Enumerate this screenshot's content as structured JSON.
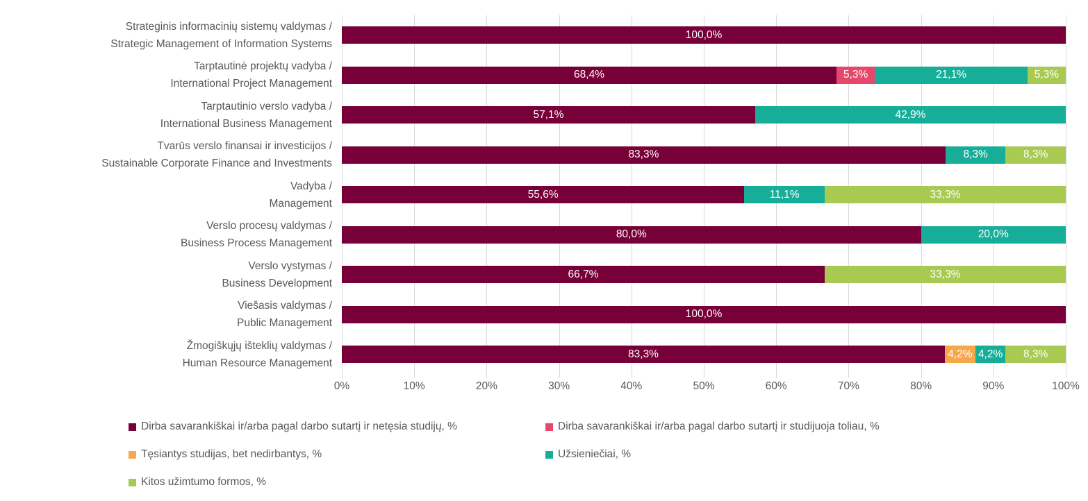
{
  "chart_data": {
    "type": "bar",
    "variant": "horizontal-stacked",
    "title": "",
    "xlabel": "",
    "ylabel": "",
    "xlim": [
      0,
      100
    ],
    "grid": "vertical",
    "legend_position": "bottom",
    "x_ticks": [
      "0%",
      "10%",
      "20%",
      "30%",
      "40%",
      "50%",
      "60%",
      "70%",
      "80%",
      "90%",
      "100%"
    ],
    "series": [
      {
        "name": "Dirba savarankiškai ir/arba pagal darbo sutartį ir netęsia studijų, %",
        "color": "#780038"
      },
      {
        "name": "Dirba savarankiškai ir/arba pagal darbo sutartį ir studijuoja toliau, %",
        "color": "#E8476C"
      },
      {
        "name": "Tęsiantys studijas, bet nedirbantys, %",
        "color": "#F4A74D"
      },
      {
        "name": "Užsieniečiai, %",
        "color": "#17AE99"
      },
      {
        "name": "Kitos užimtumo formos, %",
        "color": "#A8CA52"
      }
    ],
    "rows": [
      {
        "label_line1": "Strateginis informacinių sistemų valdymas /",
        "label_line2": "Strategic Management of Information Systems",
        "segments": [
          {
            "series": 0,
            "value": 100.0,
            "label": "100,0%"
          }
        ]
      },
      {
        "label_line1": "Tarptautinė projektų vadyba /",
        "label_line2": "International Project Management",
        "segments": [
          {
            "series": 0,
            "value": 68.4,
            "label": "68,4%"
          },
          {
            "series": 1,
            "value": 5.3,
            "label": "5,3%"
          },
          {
            "series": 3,
            "value": 21.1,
            "label": "21,1%"
          },
          {
            "series": 4,
            "value": 5.3,
            "label": "5,3%"
          }
        ]
      },
      {
        "label_line1": "Tarptautinio verslo vadyba /",
        "label_line2": "International Business Management",
        "segments": [
          {
            "series": 0,
            "value": 57.1,
            "label": "57,1%"
          },
          {
            "series": 3,
            "value": 42.9,
            "label": "42,9%"
          }
        ]
      },
      {
        "label_line1": "Tvarūs verslo finansai ir investicijos /",
        "label_line2": "Sustainable Corporate Finance and Investments",
        "segments": [
          {
            "series": 0,
            "value": 83.3,
            "label": "83,3%"
          },
          {
            "series": 3,
            "value": 8.3,
            "label": "8,3%"
          },
          {
            "series": 4,
            "value": 8.3,
            "label": "8,3%"
          }
        ]
      },
      {
        "label_line1": "Vadyba /",
        "label_line2": "Management",
        "segments": [
          {
            "series": 0,
            "value": 55.6,
            "label": "55,6%"
          },
          {
            "series": 3,
            "value": 11.1,
            "label": "11,1%"
          },
          {
            "series": 4,
            "value": 33.3,
            "label": "33,3%"
          }
        ]
      },
      {
        "label_line1": "Verslo procesų valdymas /",
        "label_line2": "Business Process Management",
        "segments": [
          {
            "series": 0,
            "value": 80.0,
            "label": "80,0%"
          },
          {
            "series": 3,
            "value": 20.0,
            "label": "20,0%"
          }
        ]
      },
      {
        "label_line1": "Verslo vystymas /",
        "label_line2": "Business Development",
        "segments": [
          {
            "series": 0,
            "value": 66.7,
            "label": "66,7%"
          },
          {
            "series": 4,
            "value": 33.3,
            "label": "33,3%"
          }
        ]
      },
      {
        "label_line1": "Viešasis valdymas /",
        "label_line2": "Public Management",
        "segments": [
          {
            "series": 0,
            "value": 100.0,
            "label": "100,0%"
          }
        ]
      },
      {
        "label_line1": "Žmogiškųjų išteklių valdymas /",
        "label_line2": "Human Resource Management",
        "segments": [
          {
            "series": 0,
            "value": 83.3,
            "label": "83,3%"
          },
          {
            "series": 2,
            "value": 4.2,
            "label": "4,2%"
          },
          {
            "series": 3,
            "value": 4.2,
            "label": "4,2%"
          },
          {
            "series": 4,
            "value": 8.3,
            "label": "8,3%"
          }
        ]
      }
    ]
  },
  "colors": {
    "gridline": "#D9D9D9",
    "axis_text": "#595959",
    "value_text": "#FFFFFF",
    "background": "#FFFFFF"
  }
}
